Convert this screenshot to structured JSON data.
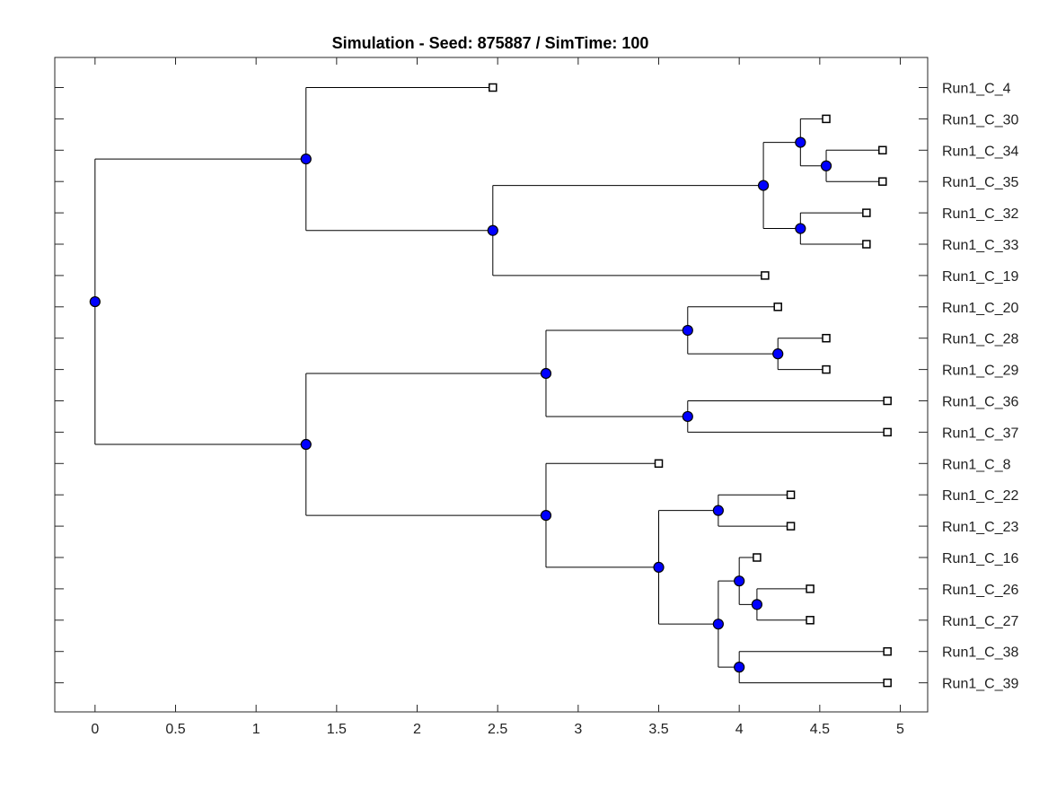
{
  "chart_data": {
    "type": "dendrogram",
    "title": "Simulation - Seed: 875887 / SimTime: 100",
    "xlabel": "",
    "ylabel": "",
    "xlim": [
      -0.25,
      5.17
    ],
    "xticks": [
      0,
      0.5,
      1,
      1.5,
      2,
      2.5,
      3,
      3.5,
      4,
      4.5,
      5
    ],
    "xtick_labels": [
      "0",
      "0.5",
      "1",
      "1.5",
      "2",
      "2.5",
      "3",
      "3.5",
      "4",
      "4.5",
      "5"
    ],
    "grid": false,
    "leaf_order": [
      "Run1_C_4",
      "Run1_C_30",
      "Run1_C_34",
      "Run1_C_35",
      "Run1_C_32",
      "Run1_C_33",
      "Run1_C_19",
      "Run1_C_20",
      "Run1_C_28",
      "Run1_C_29",
      "Run1_C_36",
      "Run1_C_37",
      "Run1_C_8",
      "Run1_C_22",
      "Run1_C_23",
      "Run1_C_16",
      "Run1_C_26",
      "Run1_C_27",
      "Run1_C_38",
      "Run1_C_39"
    ],
    "internal_node_color": "#0000ff",
    "leaf_marker_color": "#ffffff",
    "tree": {
      "x": 0,
      "children": [
        {
          "x": 1.31,
          "children": [
            {
              "leaf": "Run1_C_4",
              "x": 2.47
            },
            {
              "x": 2.47,
              "children": [
                {
                  "x": 4.15,
                  "children": [
                    {
                      "x": 4.38,
                      "children": [
                        {
                          "leaf": "Run1_C_30",
                          "x": 4.54
                        },
                        {
                          "x": 4.54,
                          "children": [
                            {
                              "leaf": "Run1_C_34",
                              "x": 4.89
                            },
                            {
                              "leaf": "Run1_C_35",
                              "x": 4.89
                            }
                          ]
                        }
                      ]
                    },
                    {
                      "x": 4.38,
                      "children": [
                        {
                          "leaf": "Run1_C_32",
                          "x": 4.79
                        },
                        {
                          "leaf": "Run1_C_33",
                          "x": 4.79
                        }
                      ]
                    }
                  ]
                },
                {
                  "leaf": "Run1_C_19",
                  "x": 4.16
                }
              ]
            }
          ]
        },
        {
          "x": 1.31,
          "children": [
            {
              "x": 2.8,
              "children": [
                {
                  "x": 3.68,
                  "children": [
                    {
                      "leaf": "Run1_C_20",
                      "x": 4.24
                    },
                    {
                      "x": 4.24,
                      "children": [
                        {
                          "leaf": "Run1_C_28",
                          "x": 4.54
                        },
                        {
                          "leaf": "Run1_C_29",
                          "x": 4.54
                        }
                      ]
                    }
                  ]
                },
                {
                  "x": 3.68,
                  "children": [
                    {
                      "leaf": "Run1_C_36",
                      "x": 4.92
                    },
                    {
                      "leaf": "Run1_C_37",
                      "x": 4.92
                    }
                  ]
                }
              ]
            },
            {
              "x": 2.8,
              "children": [
                {
                  "leaf": "Run1_C_8",
                  "x": 3.5
                },
                {
                  "x": 3.5,
                  "children": [
                    {
                      "x": 3.87,
                      "children": [
                        {
                          "leaf": "Run1_C_22",
                          "x": 4.32
                        },
                        {
                          "leaf": "Run1_C_23",
                          "x": 4.32
                        }
                      ]
                    },
                    {
                      "x": 3.87,
                      "children": [
                        {
                          "x": 4.0,
                          "children": [
                            {
                              "leaf": "Run1_C_16",
                              "x": 4.11
                            },
                            {
                              "x": 4.11,
                              "children": [
                                {
                                  "leaf": "Run1_C_26",
                                  "x": 4.44
                                },
                                {
                                  "leaf": "Run1_C_27",
                                  "x": 4.44
                                }
                              ]
                            }
                          ]
                        },
                        {
                          "x": 4.0,
                          "children": [
                            {
                              "leaf": "Run1_C_38",
                              "x": 4.92
                            },
                            {
                              "leaf": "Run1_C_39",
                              "x": 4.92
                            }
                          ]
                        }
                      ]
                    }
                  ]
                }
              ]
            }
          ]
        }
      ]
    }
  }
}
